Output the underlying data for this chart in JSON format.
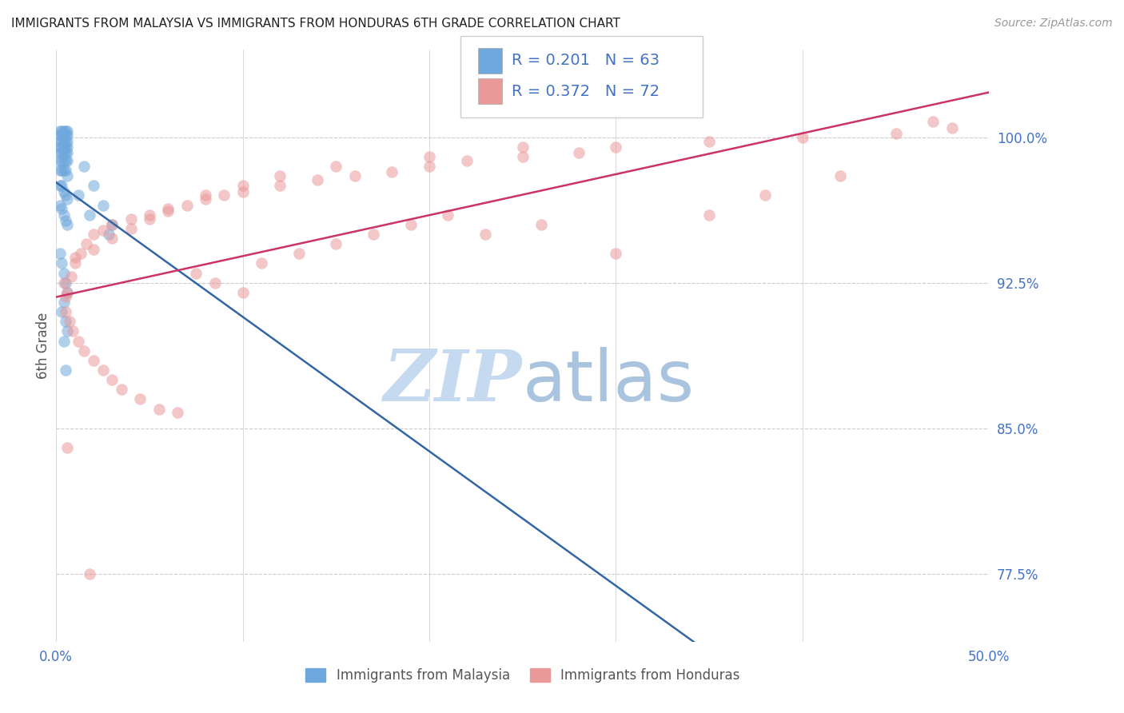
{
  "title": "IMMIGRANTS FROM MALAYSIA VS IMMIGRANTS FROM HONDURAS 6TH GRADE CORRELATION CHART",
  "source": "Source: ZipAtlas.com",
  "ylabel": "6th Grade",
  "xlim": [
    0.0,
    50.0
  ],
  "ylim": [
    74.0,
    104.5
  ],
  "yticks": [
    77.5,
    85.0,
    92.5,
    100.0
  ],
  "ytick_labels": [
    "77.5%",
    "85.0%",
    "92.5%",
    "100.0%"
  ],
  "xtick_positions": [
    0.0,
    10.0,
    20.0,
    30.0,
    40.0,
    50.0
  ],
  "xtick_labels": [
    "0.0%",
    "",
    "",
    "",
    "",
    "50.0%"
  ],
  "r_malaysia": "R = 0.201",
  "n_malaysia": "N = 63",
  "r_honduras": "R = 0.372",
  "n_honduras": "N = 72",
  "legend_label_malaysia": "Immigrants from Malaysia",
  "legend_label_honduras": "Immigrants from Honduras",
  "color_malaysia": "#6fa8dc",
  "color_honduras": "#ea9999",
  "color_trendline_malaysia": "#3465a4",
  "color_trendline_honduras": "#cc3366",
  "color_text_blue": "#4472c4",
  "color_grid": "#cccccc",
  "color_title": "#222222",
  "watermark_zip_color": "#c5d9f1",
  "watermark_atlas_color": "#aac4e0",
  "malaysia_x": [
    0.2,
    0.3,
    0.4,
    0.5,
    0.6,
    0.2,
    0.3,
    0.4,
    0.5,
    0.6,
    0.2,
    0.3,
    0.4,
    0.5,
    0.6,
    0.2,
    0.3,
    0.4,
    0.5,
    0.6,
    0.2,
    0.3,
    0.4,
    0.5,
    0.6,
    0.2,
    0.3,
    0.4,
    0.5,
    0.6,
    0.2,
    0.3,
    0.4,
    0.5,
    0.6,
    0.2,
    0.3,
    0.4,
    0.5,
    0.6,
    0.2,
    0.3,
    0.4,
    0.5,
    0.6,
    1.5,
    2.0,
    2.5,
    3.0,
    1.2,
    1.8,
    2.8,
    0.2,
    0.3,
    0.4,
    0.5,
    0.6,
    0.4,
    0.3,
    0.5,
    0.6,
    0.4,
    0.5
  ],
  "malaysia_y": [
    100.3,
    100.3,
    100.3,
    100.3,
    100.3,
    100.1,
    100.1,
    100.1,
    100.1,
    100.1,
    99.8,
    99.8,
    99.8,
    99.8,
    99.8,
    99.5,
    99.5,
    99.5,
    99.5,
    99.5,
    99.2,
    99.2,
    99.2,
    99.2,
    99.2,
    98.8,
    98.8,
    98.8,
    98.8,
    98.8,
    98.3,
    98.3,
    98.3,
    98.3,
    98.0,
    97.5,
    97.5,
    97.2,
    97.0,
    96.8,
    96.5,
    96.3,
    96.0,
    95.7,
    95.5,
    98.5,
    97.5,
    96.5,
    95.5,
    97.0,
    96.0,
    95.0,
    94.0,
    93.5,
    93.0,
    92.5,
    92.0,
    91.5,
    91.0,
    90.5,
    90.0,
    89.5,
    88.0
  ],
  "honduras_x": [
    0.4,
    0.5,
    0.6,
    0.8,
    1.0,
    1.3,
    1.6,
    2.0,
    2.5,
    3.0,
    4.0,
    5.0,
    6.0,
    7.0,
    8.0,
    9.0,
    10.0,
    12.0,
    14.0,
    16.0,
    18.0,
    20.0,
    22.0,
    25.0,
    28.0,
    30.0,
    35.0,
    40.0,
    45.0,
    48.0,
    0.5,
    0.7,
    0.9,
    1.2,
    1.5,
    2.0,
    2.5,
    3.0,
    3.5,
    4.5,
    5.5,
    6.5,
    7.5,
    8.5,
    10.0,
    11.0,
    13.0,
    15.0,
    17.0,
    19.0,
    21.0,
    23.0,
    26.0,
    30.0,
    35.0,
    38.0,
    42.0,
    47.0,
    1.0,
    2.0,
    3.0,
    4.0,
    5.0,
    6.0,
    8.0,
    10.0,
    12.0,
    15.0,
    20.0,
    25.0,
    0.6,
    1.8
  ],
  "honduras_y": [
    92.5,
    91.8,
    92.0,
    92.8,
    93.5,
    94.0,
    94.5,
    95.0,
    95.2,
    95.5,
    95.8,
    96.0,
    96.2,
    96.5,
    96.8,
    97.0,
    97.2,
    97.5,
    97.8,
    98.0,
    98.2,
    98.5,
    98.8,
    99.0,
    99.2,
    99.5,
    99.8,
    100.0,
    100.2,
    100.5,
    91.0,
    90.5,
    90.0,
    89.5,
    89.0,
    88.5,
    88.0,
    87.5,
    87.0,
    86.5,
    86.0,
    85.8,
    93.0,
    92.5,
    92.0,
    93.5,
    94.0,
    94.5,
    95.0,
    95.5,
    96.0,
    95.0,
    95.5,
    94.0,
    96.0,
    97.0,
    98.0,
    100.8,
    93.8,
    94.2,
    94.8,
    95.3,
    95.8,
    96.3,
    97.0,
    97.5,
    98.0,
    98.5,
    99.0,
    99.5,
    84.0,
    77.5
  ]
}
